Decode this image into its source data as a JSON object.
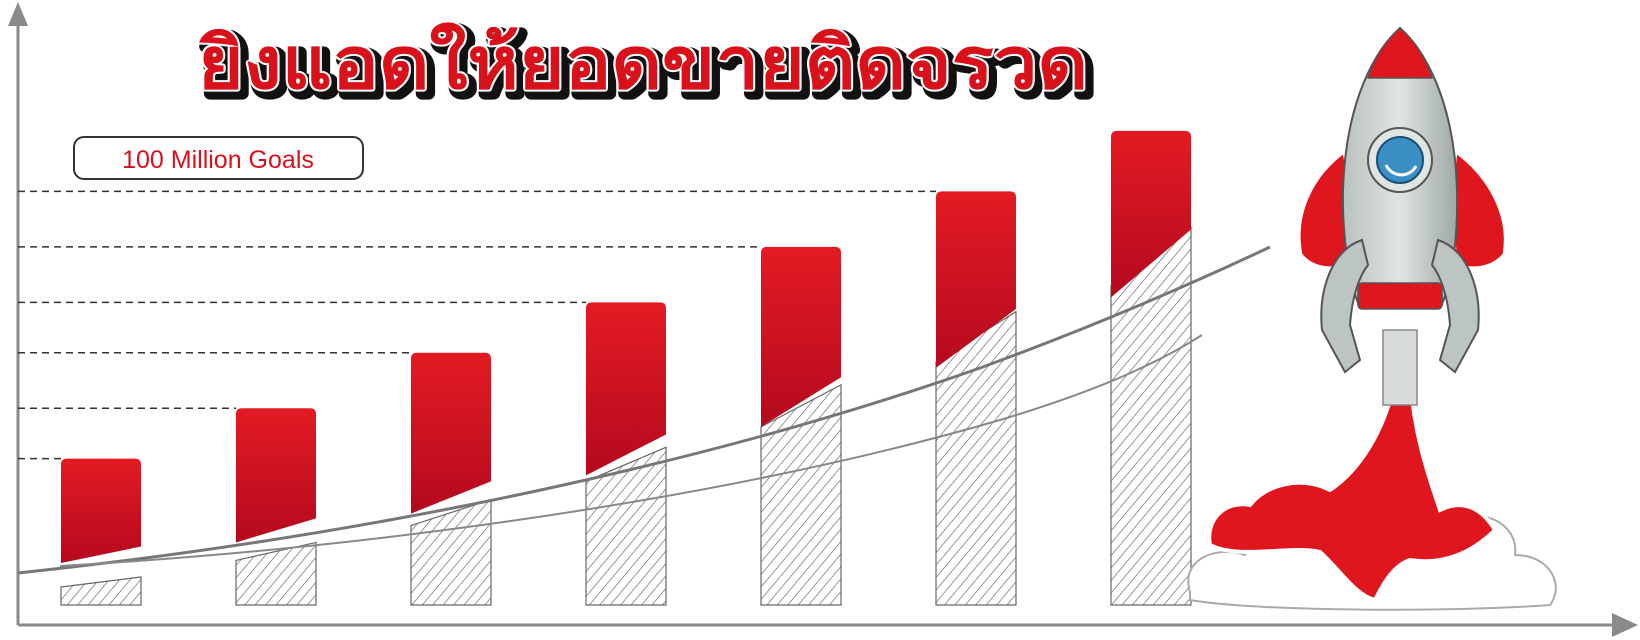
{
  "title": "ยิงแอดให้ยอดขายติดจรวด",
  "goal_label": "100 Million Goals",
  "colors": {
    "bar_top": "#e31b23",
    "bar_bottom": "#b5091f",
    "axis": "#8a8a8a",
    "dashes": "#333333",
    "title_red": "#d8111b",
    "rocket_body": "#c9d0ce",
    "rocket_red": "#e0161f",
    "window": "#3a8fc4"
  },
  "chart_data": {
    "type": "bar",
    "title": "ยิงแอดให้ยอดขายติดจรวด",
    "categories": [
      "",
      "",
      "",
      "",
      "",
      "",
      ""
    ],
    "values": [
      3.3,
      4.3,
      5.4,
      6.4,
      7.5,
      8.6,
      9.8
    ],
    "trend_curve": true,
    "hatched_base_bars": true,
    "gridlines": "dashed, to each bar top",
    "annotation": "100 Million Goals",
    "legend": "none",
    "ylim": [
      0,
      12
    ]
  },
  "decoration": {
    "rocket": "rocket-icon"
  }
}
